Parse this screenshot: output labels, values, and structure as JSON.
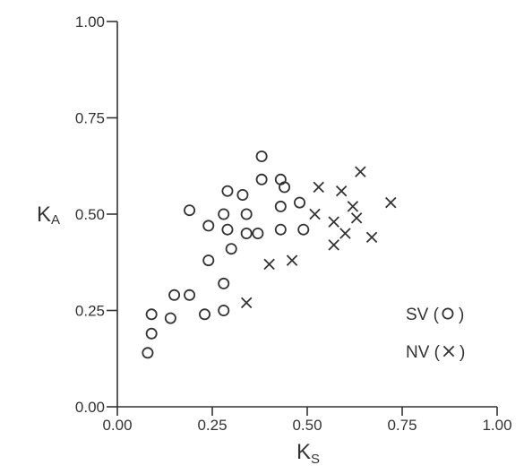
{
  "chart_data": {
    "type": "scatter",
    "title": "",
    "xlabel": {
      "main": "K",
      "sub": "S"
    },
    "ylabel": {
      "main": "K",
      "sub": "A"
    },
    "xlim": [
      0,
      1
    ],
    "ylim": [
      0,
      1
    ],
    "xticks": [
      "0.00",
      "0.25",
      "0.50",
      "0.75",
      "1.00"
    ],
    "yticks": [
      "0.00",
      "0.25",
      "0.50",
      "0.75",
      "1.00"
    ],
    "grid": false,
    "legend_position": "bottom-right",
    "series": [
      {
        "name": "SV",
        "marker": "circle",
        "legend_label": "SV (",
        "legend_close": ")",
        "points": [
          [
            0.08,
            0.14
          ],
          [
            0.09,
            0.19
          ],
          [
            0.09,
            0.24
          ],
          [
            0.14,
            0.23
          ],
          [
            0.15,
            0.29
          ],
          [
            0.19,
            0.29
          ],
          [
            0.19,
            0.51
          ],
          [
            0.23,
            0.24
          ],
          [
            0.24,
            0.38
          ],
          [
            0.24,
            0.47
          ],
          [
            0.28,
            0.25
          ],
          [
            0.28,
            0.32
          ],
          [
            0.28,
            0.5
          ],
          [
            0.29,
            0.56
          ],
          [
            0.29,
            0.46
          ],
          [
            0.3,
            0.41
          ],
          [
            0.33,
            0.55
          ],
          [
            0.34,
            0.5
          ],
          [
            0.34,
            0.45
          ],
          [
            0.37,
            0.45
          ],
          [
            0.38,
            0.59
          ],
          [
            0.38,
            0.65
          ],
          [
            0.43,
            0.59
          ],
          [
            0.43,
            0.52
          ],
          [
            0.43,
            0.46
          ],
          [
            0.44,
            0.57
          ],
          [
            0.48,
            0.53
          ],
          [
            0.49,
            0.46
          ]
        ]
      },
      {
        "name": "NV",
        "marker": "cross",
        "legend_label": "NV (",
        "legend_close": ")",
        "points": [
          [
            0.34,
            0.27
          ],
          [
            0.4,
            0.37
          ],
          [
            0.46,
            0.38
          ],
          [
            0.52,
            0.5
          ],
          [
            0.53,
            0.57
          ],
          [
            0.57,
            0.48
          ],
          [
            0.57,
            0.42
          ],
          [
            0.59,
            0.56
          ],
          [
            0.6,
            0.45
          ],
          [
            0.62,
            0.52
          ],
          [
            0.63,
            0.49
          ],
          [
            0.64,
            0.61
          ],
          [
            0.67,
            0.44
          ],
          [
            0.72,
            0.53
          ]
        ]
      }
    ]
  }
}
